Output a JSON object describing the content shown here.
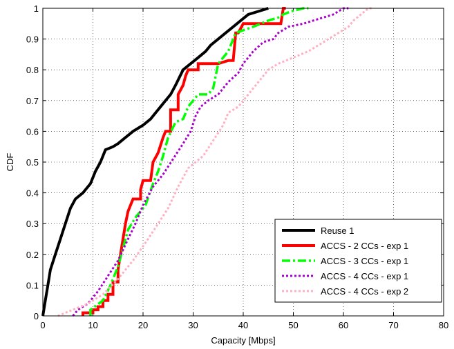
{
  "chart_data": {
    "type": "line",
    "title": "",
    "xlabel": "Capacity [Mbps]",
    "ylabel": "CDF",
    "xlim": [
      0,
      80
    ],
    "ylim": [
      0,
      1
    ],
    "xticks": [
      0,
      10,
      20,
      30,
      40,
      50,
      60,
      70,
      80
    ],
    "yticks": [
      0,
      0.1,
      0.2,
      0.3,
      0.4,
      0.5,
      0.6,
      0.7,
      0.8,
      0.9,
      1
    ],
    "xtick_labels": [
      "0",
      "10",
      "20",
      "30",
      "40",
      "50",
      "60",
      "70",
      "80"
    ],
    "ytick_labels": [
      "0",
      "0.1",
      "0.2",
      "0.3",
      "0.4",
      "0.5",
      "0.6",
      "0.7",
      "0.8",
      "0.9",
      "1"
    ],
    "grid": "on, dotted",
    "legend_position": "bottom-right",
    "series": [
      {
        "name": "Reuse 1",
        "color": "#000000",
        "style": "solid",
        "points": [
          [
            0,
            0
          ],
          [
            0.5,
            0.05
          ],
          [
            1,
            0.1
          ],
          [
            1.5,
            0.15
          ],
          [
            2.5,
            0.2
          ],
          [
            3.5,
            0.25
          ],
          [
            4.5,
            0.3
          ],
          [
            5.5,
            0.35
          ],
          [
            6.5,
            0.38
          ],
          [
            8,
            0.4
          ],
          [
            9.5,
            0.43
          ],
          [
            10.5,
            0.47
          ],
          [
            11.5,
            0.5
          ],
          [
            12.5,
            0.54
          ],
          [
            14,
            0.55
          ],
          [
            15,
            0.56
          ],
          [
            16.5,
            0.58
          ],
          [
            18,
            0.6
          ],
          [
            20,
            0.62
          ],
          [
            21.5,
            0.64
          ],
          [
            22.5,
            0.66
          ],
          [
            23.5,
            0.68
          ],
          [
            24.5,
            0.7
          ],
          [
            25.5,
            0.72
          ],
          [
            26.5,
            0.75
          ],
          [
            28,
            0.8
          ],
          [
            29.5,
            0.82
          ],
          [
            31,
            0.84
          ],
          [
            32.5,
            0.86
          ],
          [
            33.5,
            0.88
          ],
          [
            35,
            0.9
          ],
          [
            36.5,
            0.92
          ],
          [
            38,
            0.94
          ],
          [
            39.5,
            0.96
          ],
          [
            41,
            0.98
          ],
          [
            43,
            0.99
          ],
          [
            45,
            1
          ]
        ]
      },
      {
        "name": "ACCS - 2 CCs - exp 1",
        "color": "#ff0000",
        "style": "solid",
        "points": [
          [
            8,
            0
          ],
          [
            8,
            0.01
          ],
          [
            10,
            0.01
          ],
          [
            10,
            0.02
          ],
          [
            11,
            0.02
          ],
          [
            11,
            0.03
          ],
          [
            12,
            0.03
          ],
          [
            12,
            0.05
          ],
          [
            13,
            0.05
          ],
          [
            13,
            0.07
          ],
          [
            14,
            0.07
          ],
          [
            14,
            0.11
          ],
          [
            15,
            0.11
          ],
          [
            15,
            0.15
          ],
          [
            15.5,
            0.2
          ],
          [
            16,
            0.25
          ],
          [
            16.5,
            0.3
          ],
          [
            17,
            0.34
          ],
          [
            18,
            0.38
          ],
          [
            19.5,
            0.38
          ],
          [
            19.5,
            0.41
          ],
          [
            20,
            0.44
          ],
          [
            21.5,
            0.44
          ],
          [
            22,
            0.5
          ],
          [
            23,
            0.53
          ],
          [
            24,
            0.58
          ],
          [
            24.5,
            0.6
          ],
          [
            25.5,
            0.6
          ],
          [
            25.5,
            0.67
          ],
          [
            27,
            0.67
          ],
          [
            27,
            0.72
          ],
          [
            28,
            0.75
          ],
          [
            28.5,
            0.78
          ],
          [
            29,
            0.8
          ],
          [
            31,
            0.8
          ],
          [
            31,
            0.82
          ],
          [
            35,
            0.82
          ],
          [
            37,
            0.83
          ],
          [
            38,
            0.83
          ],
          [
            38.5,
            0.92
          ],
          [
            39,
            0.92
          ],
          [
            40,
            0.95
          ],
          [
            47.5,
            0.95
          ],
          [
            48,
            1
          ],
          [
            48.5,
            1
          ]
        ]
      },
      {
        "name": "ACCS - 3 CCs - exp 1",
        "color": "#00ff00",
        "style": "dashdot",
        "points": [
          [
            9.5,
            0
          ],
          [
            9.5,
            0.02
          ],
          [
            12,
            0.05
          ],
          [
            13.5,
            0.1
          ],
          [
            15,
            0.16
          ],
          [
            16,
            0.22
          ],
          [
            17,
            0.28
          ],
          [
            18.5,
            0.32
          ],
          [
            20.5,
            0.36
          ],
          [
            22,
            0.43
          ],
          [
            23,
            0.47
          ],
          [
            24,
            0.52
          ],
          [
            25,
            0.58
          ],
          [
            26.5,
            0.63
          ],
          [
            28,
            0.64
          ],
          [
            29,
            0.68
          ],
          [
            30,
            0.7
          ],
          [
            31,
            0.72
          ],
          [
            33,
            0.72
          ],
          [
            34,
            0.74
          ],
          [
            34.5,
            0.78
          ],
          [
            35,
            0.82
          ],
          [
            36,
            0.84
          ],
          [
            37,
            0.86
          ],
          [
            37.5,
            0.88
          ],
          [
            38.5,
            0.92
          ],
          [
            42,
            0.94
          ],
          [
            45,
            0.96
          ],
          [
            47,
            0.97
          ],
          [
            48,
            0.98
          ],
          [
            49.5,
            0.99
          ],
          [
            52,
            1
          ],
          [
            53,
            1
          ]
        ]
      },
      {
        "name": "ACCS - 4 CCs - exp 1",
        "color": "#aa00cc",
        "style": "dotted",
        "points": [
          [
            6,
            0
          ],
          [
            7,
            0.02
          ],
          [
            9,
            0.04
          ],
          [
            11,
            0.08
          ],
          [
            13,
            0.13
          ],
          [
            15,
            0.18
          ],
          [
            17,
            0.25
          ],
          [
            18.5,
            0.3
          ],
          [
            20,
            0.36
          ],
          [
            22,
            0.42
          ],
          [
            24,
            0.46
          ],
          [
            26,
            0.51
          ],
          [
            28,
            0.56
          ],
          [
            29.5,
            0.6
          ],
          [
            30.5,
            0.65
          ],
          [
            31.5,
            0.68
          ],
          [
            33,
            0.7
          ],
          [
            35,
            0.72
          ],
          [
            37,
            0.76
          ],
          [
            39,
            0.79
          ],
          [
            40,
            0.82
          ],
          [
            42,
            0.86
          ],
          [
            44,
            0.89
          ],
          [
            46,
            0.9
          ],
          [
            47,
            0.92
          ],
          [
            49,
            0.94
          ],
          [
            52,
            0.95
          ],
          [
            54,
            0.96
          ],
          [
            56,
            0.97
          ],
          [
            58,
            0.98
          ],
          [
            60,
            1
          ],
          [
            61,
            1
          ]
        ]
      },
      {
        "name": "ACCS - 4 CCs - exp 2",
        "color": "#ffb0c0",
        "style": "dotted",
        "points": [
          [
            3,
            0
          ],
          [
            6,
            0.02
          ],
          [
            9,
            0.04
          ],
          [
            12,
            0.07
          ],
          [
            15,
            0.12
          ],
          [
            18,
            0.18
          ],
          [
            21,
            0.25
          ],
          [
            23,
            0.3
          ],
          [
            25,
            0.35
          ],
          [
            27,
            0.42
          ],
          [
            29,
            0.48
          ],
          [
            30.5,
            0.5
          ],
          [
            32,
            0.52
          ],
          [
            34,
            0.57
          ],
          [
            36,
            0.62
          ],
          [
            37,
            0.66
          ],
          [
            39,
            0.68
          ],
          [
            41,
            0.72
          ],
          [
            43,
            0.76
          ],
          [
            45,
            0.8
          ],
          [
            47,
            0.82
          ],
          [
            50,
            0.84
          ],
          [
            53,
            0.86
          ],
          [
            55,
            0.88
          ],
          [
            57,
            0.9
          ],
          [
            59,
            0.92
          ],
          [
            61,
            0.94
          ],
          [
            62,
            0.96
          ],
          [
            63.5,
            0.98
          ],
          [
            65,
            1
          ],
          [
            66,
            1
          ]
        ]
      }
    ]
  }
}
